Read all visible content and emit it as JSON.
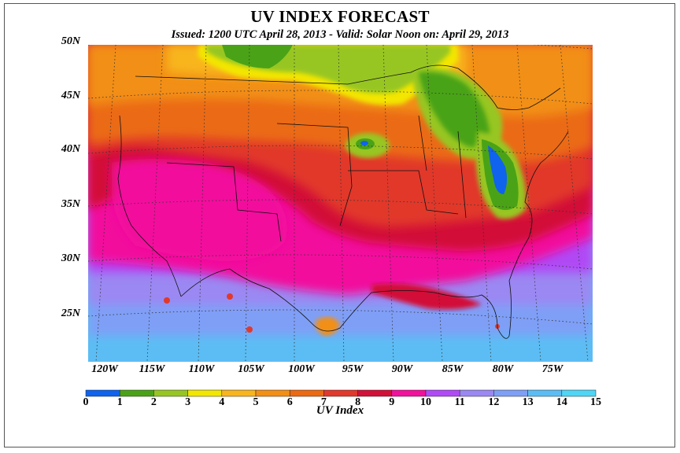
{
  "title": "UV INDEX FORECAST",
  "subtitle": "Issued: 1200 UTC April 28, 2013  -  Valid: Solar Noon on: April 29, 2013",
  "lat_labels": [
    "50N",
    "45N",
    "40N",
    "35N",
    "30N",
    "25N"
  ],
  "lon_labels": [
    "120W",
    "115W",
    "110W",
    "105W",
    "100W",
    "95W",
    "90W",
    "85W",
    "80W",
    "75W"
  ],
  "colorbar": {
    "label": "UV Index",
    "ticks": [
      "0",
      "1",
      "2",
      "3",
      "4",
      "5",
      "6",
      "7",
      "8",
      "9",
      "10",
      "11",
      "12",
      "13",
      "14",
      "15"
    ],
    "colors": [
      "#0f63ec",
      "#4aa316",
      "#97c623",
      "#f3e600",
      "#f8b51d",
      "#f28f15",
      "#eb6a12",
      "#e1392c",
      "#d20f38",
      "#f2119d",
      "#b04af5",
      "#9b88f2",
      "#7f9ff6",
      "#5cbdf4",
      "#4ed6f6"
    ]
  }
}
